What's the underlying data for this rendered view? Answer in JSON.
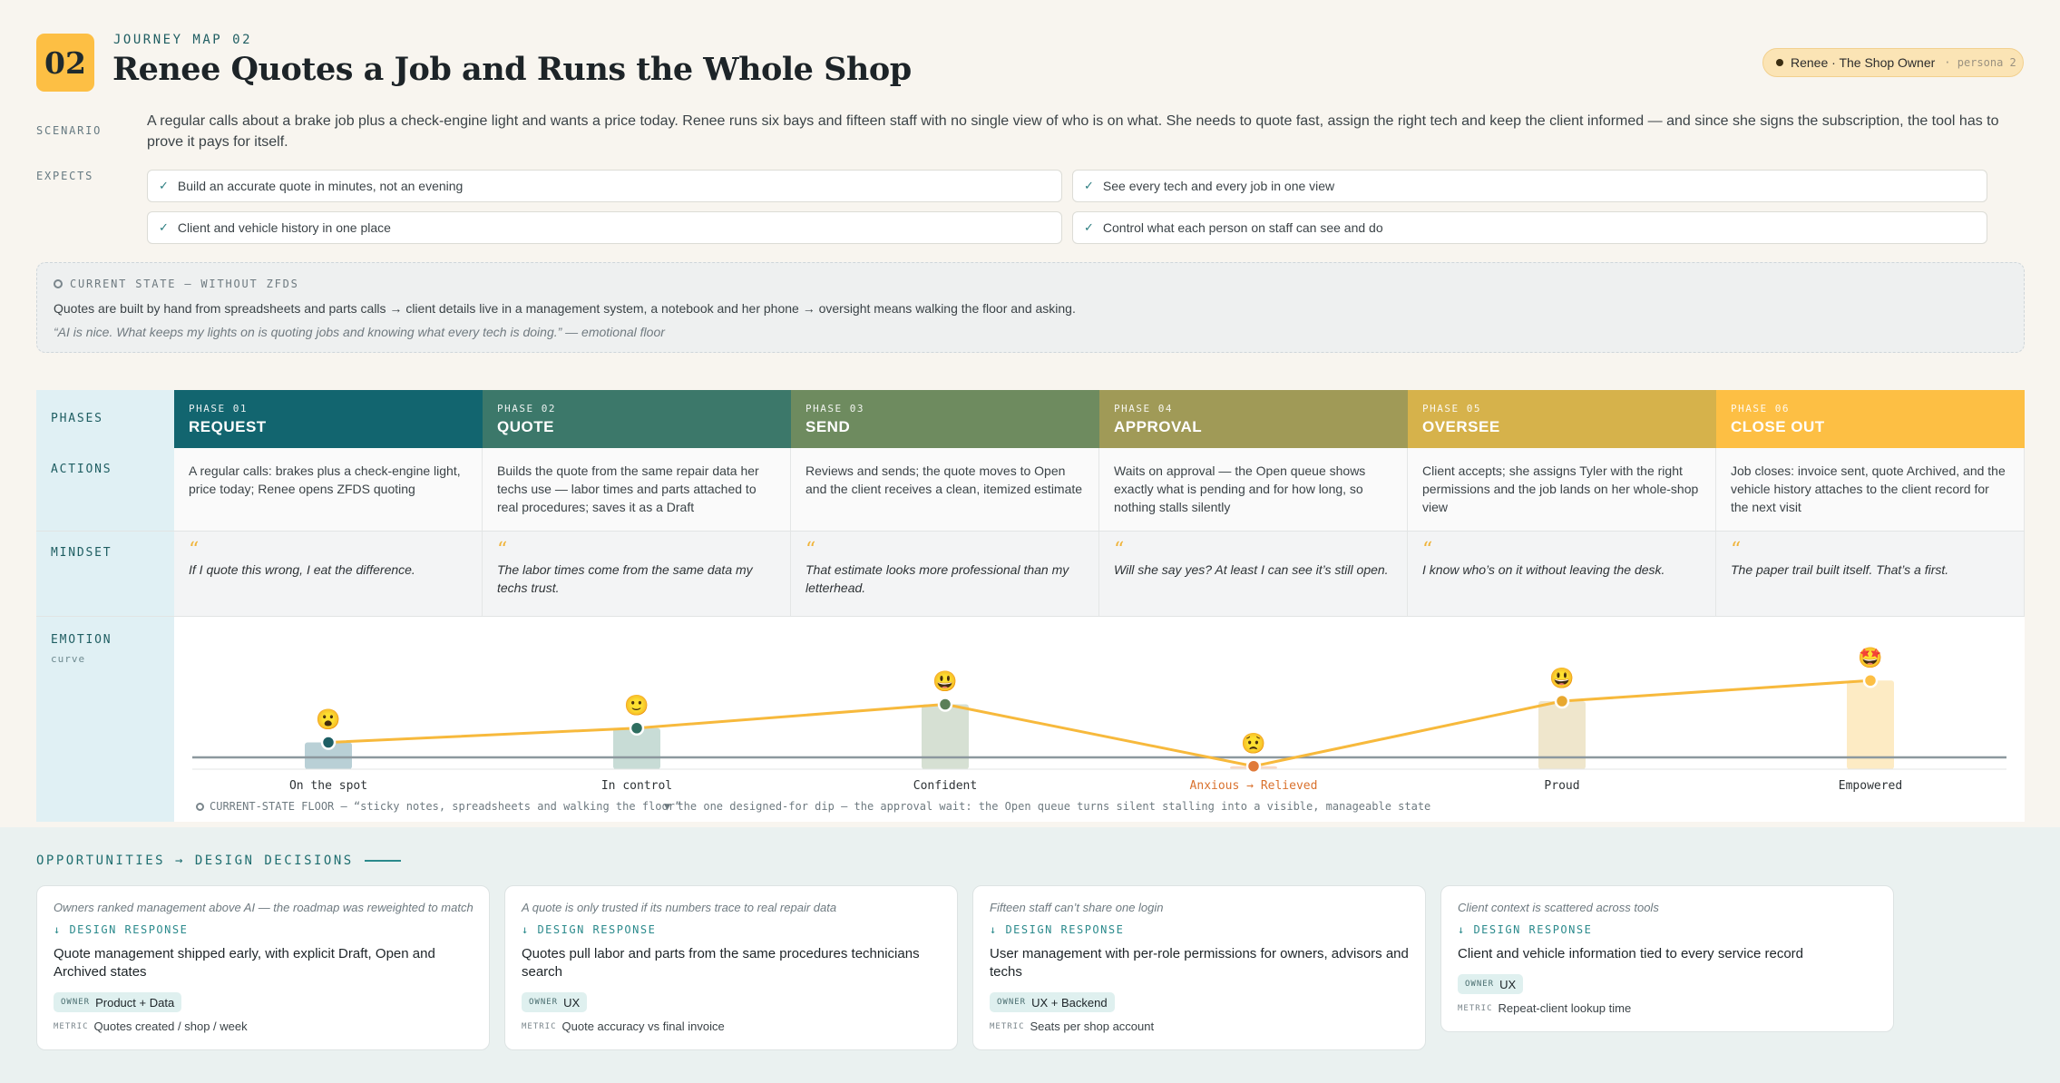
{
  "header": {
    "number": "02",
    "kicker": "JOURNEY MAP 02",
    "title": "Renee Quotes a Job and Runs the Whole Shop",
    "persona_name": "Renee · The Shop Owner",
    "persona_tag": "· persona 2"
  },
  "scenario": {
    "label": "SCENARIO",
    "text": "A regular calls about a brake job plus a check-engine light and wants a price today. Renee runs six bays and fifteen staff with no single view of who is on what. She needs to quote fast, assign the right tech and keep the client informed — and since she signs the subscription, the tool has to prove it pays for itself."
  },
  "expects": {
    "label": "EXPECTS",
    "items": [
      "Build an accurate quote in minutes, not an evening",
      "See every tech and every job in one view",
      "Client and vehicle history in one place",
      "Control what each person on staff can see and do"
    ]
  },
  "current_state": {
    "label": "CURRENT STATE — WITHOUT ZFDS",
    "text": "Quotes are built by hand from spreadsheets and parts calls → client details live in a management system, a notebook and her phone → oversight means walking the floor and asking.",
    "quote": "“AI is nice. What keeps my lights on is quoting jobs and knowing what every tech is doing.” — emotional floor"
  },
  "rows": {
    "phases": "PHASES",
    "actions": "ACTIONS",
    "mindset": "MINDSET",
    "emotion": "EMOTION",
    "emotion_sub": "curve"
  },
  "phases": [
    {
      "num": "PHASE 01",
      "name": "REQUEST",
      "color": "#12656f",
      "action": "A regular calls: brakes plus a check-engine light, price today; Renee opens ZFDS quoting",
      "mindset": "If I quote this wrong, I eat the difference."
    },
    {
      "num": "PHASE 02",
      "name": "QUOTE",
      "color": "#3c786a",
      "action": "Builds the quote from the same repair data her techs use — labor times and parts attached to real procedures; saves it as a Draft",
      "mindset": "The labor times come from the same data my techs trust."
    },
    {
      "num": "PHASE 03",
      "name": "SEND",
      "color": "#6e8b5f",
      "action": "Reviews and sends; the quote moves to Open and the client receives a clean, itemized estimate",
      "mindset": "That estimate looks more professional than my letterhead."
    },
    {
      "num": "PHASE 04",
      "name": "APPROVAL",
      "color": "#a09a57",
      "action": "Waits on approval — the Open queue shows exactly what is pending and for how long, so nothing stalls silently",
      "mindset": "Will she say yes? At least I can see it’s still open."
    },
    {
      "num": "PHASE 05",
      "name": "OVERSEE",
      "color": "#d6b24b",
      "action": "Client accepts; she assigns Tyler with the right permissions and the job lands on her whole-shop view",
      "mindset": "I know who’s on it without leaving the desk."
    },
    {
      "num": "PHASE 06",
      "name": "CLOSE OUT",
      "color": "#fdbf44",
      "action": "Job closes: invoice sent, quote Archived, and the vehicle history attaches to the client record for the next visit",
      "mindset": "The paper trail built itself. That’s a first."
    }
  ],
  "emotion": {
    "points": [
      {
        "label": "On the spot",
        "level": 0.38,
        "emoji": "😮",
        "dot": "#1d5e64",
        "bar": "#b9d0d6",
        "label_color": "#2e3336"
      },
      {
        "label": "In control",
        "level": 0.47,
        "emoji": "🙂",
        "dot": "#2e6e60",
        "bar": "#c8dcd6",
        "label_color": "#2e3336"
      },
      {
        "label": "Confident",
        "level": 0.62,
        "emoji": "😃",
        "dot": "#5b7f58",
        "bar": "#d6e0d3",
        "label_color": "#2e3336"
      },
      {
        "label": "Anxious → Relieved",
        "level": 0.23,
        "emoji": "😟",
        "dot": "#e07a3a",
        "bar": "#f8d9c6",
        "label_color": "#d9712d"
      },
      {
        "label": "Proud",
        "level": 0.64,
        "emoji": "😃",
        "dot": "#e8a82f",
        "bar": "#efe6cc",
        "label_color": "#2e3336"
      },
      {
        "label": "Empowered",
        "level": 0.77,
        "emoji": "🤩",
        "dot": "#fdbf44",
        "bar": "#fdebc4",
        "label_color": "#2e3336"
      }
    ],
    "line_color": "#f7b93c",
    "floor_note": "CURRENT-STATE FLOOR — “sticky notes, spreadsheets and walking the floor”",
    "dip_note": "▼ the one designed-for dip — the approval wait: the Open queue turns silent stalling into a visible, manageable state"
  },
  "opportunities": {
    "heading": "OPPORTUNITIES → DESIGN DECISIONS",
    "response_label": "↓ DESIGN RESPONSE",
    "owner_key": "OWNER",
    "metric_key": "METRIC",
    "cards": [
      {
        "context": "Owners ranked management above AI — the roadmap was reweighted to match",
        "decision": "Quote management shipped early, with explicit Draft, Open and Archived states",
        "owner": "Product + Data",
        "metric": "Quotes created / shop / week"
      },
      {
        "context": "A quote is only trusted if its numbers trace to real repair data",
        "decision": "Quotes pull labor and parts from the same procedures technicians search",
        "owner": "UX",
        "metric": "Quote accuracy vs final invoice"
      },
      {
        "context": "Fifteen staff can’t share one login",
        "decision": "User management with per-role permissions for owners, advisors and techs",
        "owner": "UX + Backend",
        "metric": "Seats per shop account"
      },
      {
        "context": "Client context is scattered across tools",
        "decision": "Client and vehicle information tied to every service record",
        "owner": "UX",
        "metric": "Repeat-client lookup time"
      }
    ]
  }
}
